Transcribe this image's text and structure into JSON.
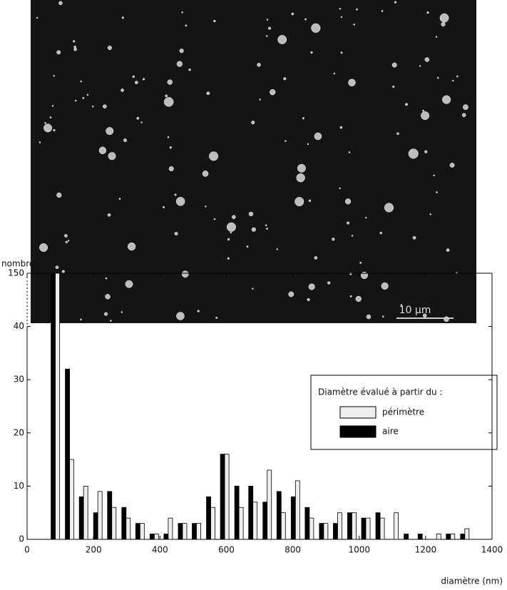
{
  "image": {
    "scale_bar": "10 µm"
  },
  "chart_data": {
    "type": "bar",
    "y_label": "nombre",
    "x_label": "diamètre (nm)",
    "legend_title": "Diamètre évalué à partir du :",
    "legend": "upper right",
    "x": [
      85,
      128,
      170,
      213,
      255,
      298,
      340,
      383,
      425,
      468,
      510,
      553,
      595,
      638,
      680,
      723,
      765,
      808,
      850,
      893,
      935,
      978,
      1020,
      1063,
      1105,
      1148,
      1190,
      1233,
      1275,
      1318
    ],
    "series": [
      {
        "name": "périmètre",
        "color": "#eeeeee",
        "values": [
          150,
          15,
          10,
          9,
          6,
          4,
          3,
          1,
          4,
          3,
          3,
          6,
          16,
          6,
          7,
          13,
          5,
          11,
          4,
          3,
          5,
          5,
          4,
          4,
          5,
          0,
          0,
          1,
          1,
          2
        ]
      },
      {
        "name": "aire",
        "color": "#000000",
        "values": [
          150,
          32,
          8,
          5,
          9,
          6,
          3,
          1,
          1,
          3,
          3,
          8,
          16,
          10,
          10,
          7,
          9,
          8,
          6,
          3,
          3,
          5,
          4,
          5,
          0,
          1,
          1,
          0,
          1,
          1
        ]
      }
    ],
    "xlim": [
      0,
      1400
    ],
    "xticks": [
      0,
      200,
      400,
      600,
      800,
      1000,
      1200,
      1400
    ],
    "ylim": [
      0,
      150
    ],
    "yticks": [
      0,
      10,
      20,
      30,
      40,
      150
    ]
  }
}
